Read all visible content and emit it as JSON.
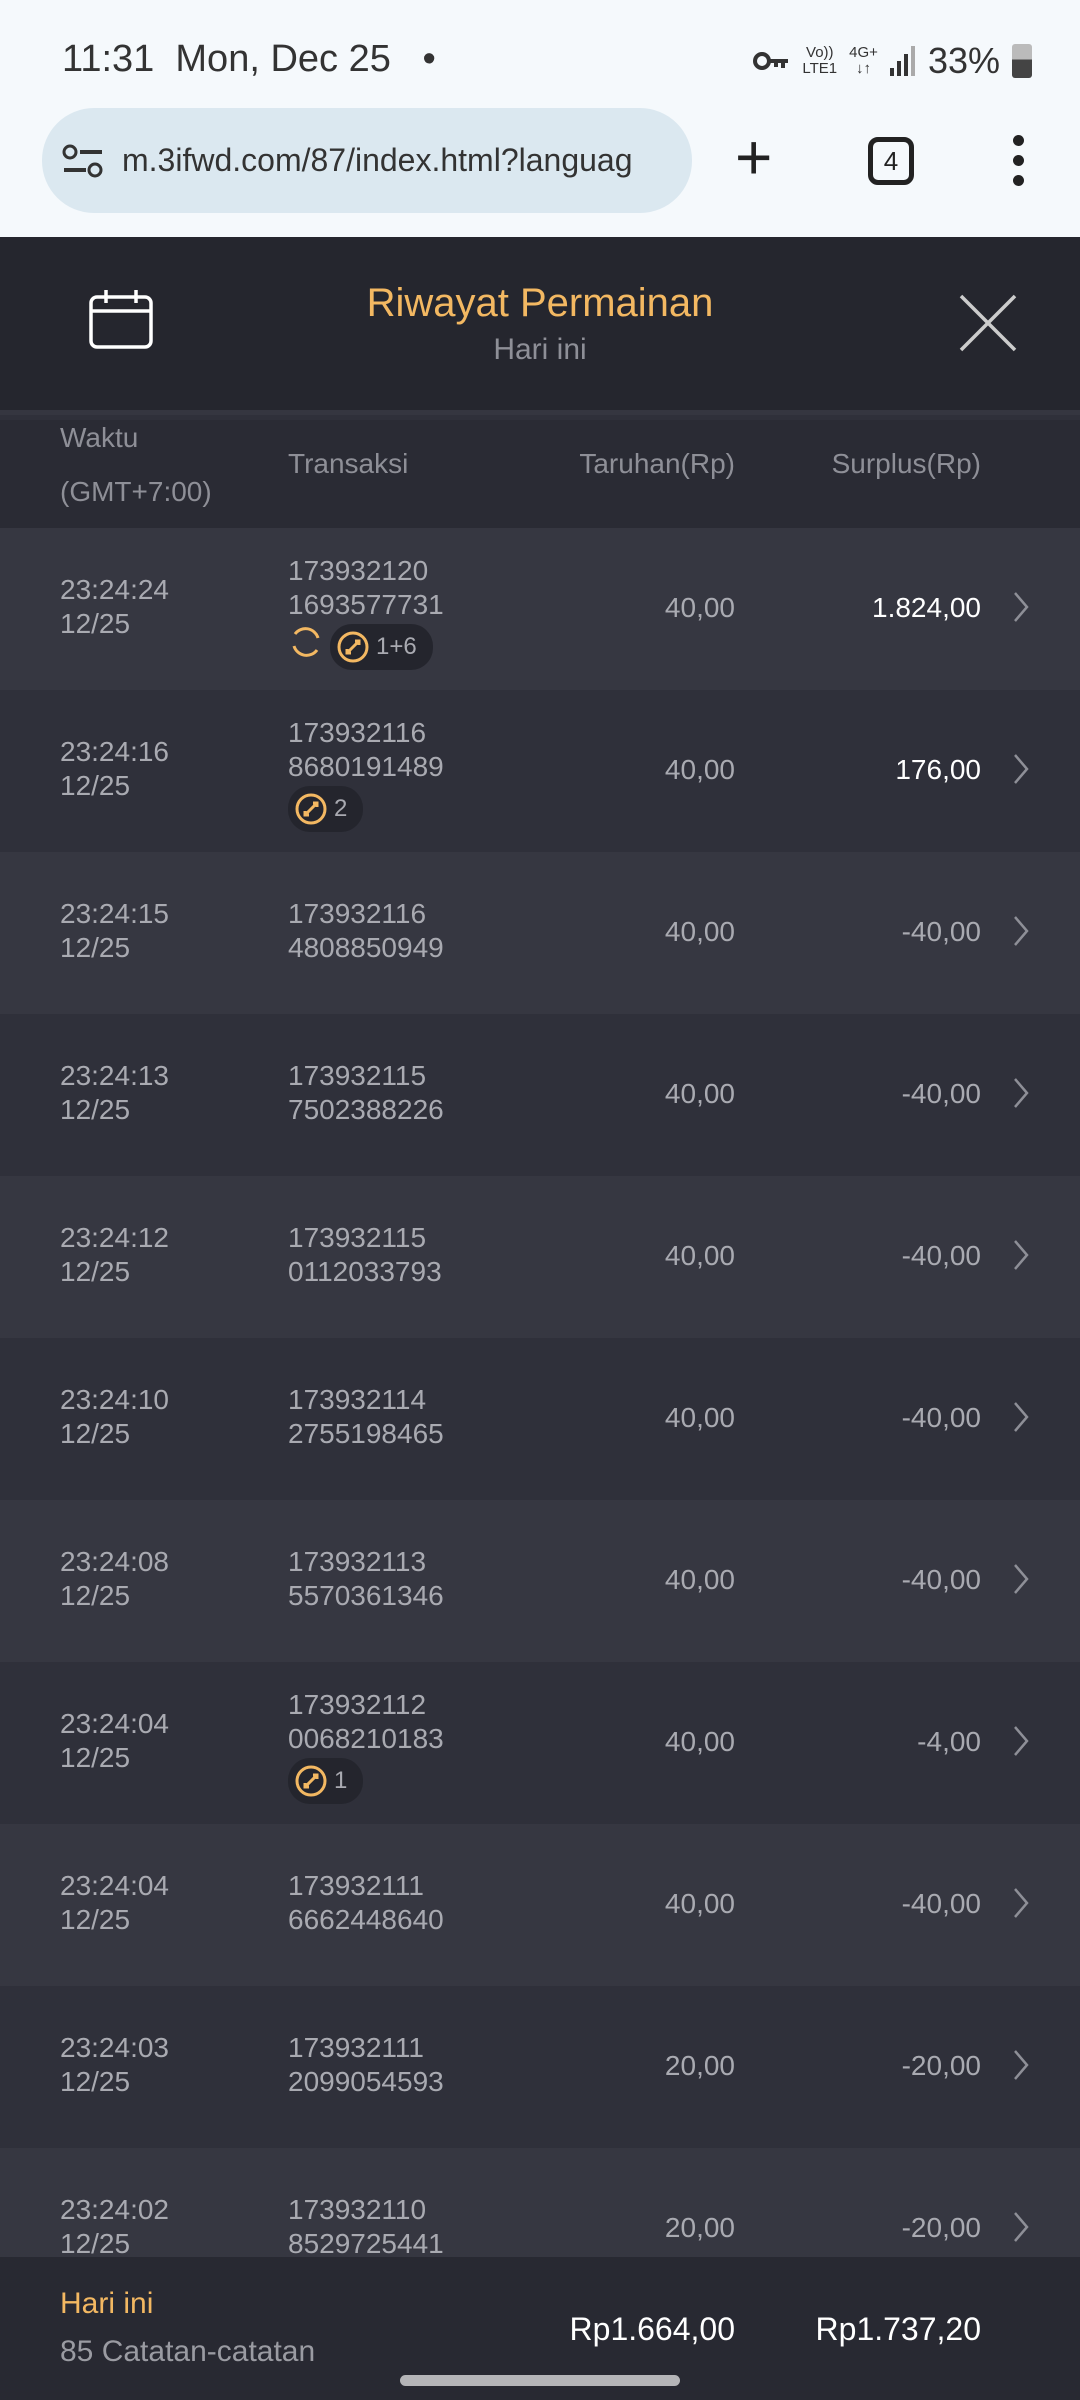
{
  "status_bar": {
    "time": "11:31",
    "date": "Mon, Dec 25",
    "dot": "•",
    "volte": "Vo))",
    "lte": "LTE1",
    "network": "4G+",
    "arrows": "↓↑",
    "battery": "33%"
  },
  "browser": {
    "url": "m.3ifwd.com/87/index.html?languag",
    "tab_count": "4",
    "plus": "+"
  },
  "header": {
    "title": "Riwayat Permainan",
    "subtitle": "Hari ini"
  },
  "columns": {
    "time": "Waktu",
    "timezone": "(GMT+7:00)",
    "transaction": "Transaksi",
    "bet": "Taruhan(Rp)",
    "surplus": "Surplus(Rp)"
  },
  "accent_color": "#f3b862",
  "rows": [
    {
      "time": "23:24:24",
      "date": "12/25",
      "tx1": "173932120",
      "tx2": "1693577731",
      "bet": "40,00",
      "surplus": "1.824,00",
      "positive": true,
      "refresh": true,
      "badge": "1+6"
    },
    {
      "time": "23:24:16",
      "date": "12/25",
      "tx1": "173932116",
      "tx2": "8680191489",
      "bet": "40,00",
      "surplus": "176,00",
      "positive": true,
      "badge": "2"
    },
    {
      "time": "23:24:15",
      "date": "12/25",
      "tx1": "173932116",
      "tx2": "4808850949",
      "bet": "40,00",
      "surplus": "-40,00"
    },
    {
      "time": "23:24:13",
      "date": "12/25",
      "tx1": "173932115",
      "tx2": "7502388226",
      "bet": "40,00",
      "surplus": "-40,00"
    },
    {
      "time": "23:24:12",
      "date": "12/25",
      "tx1": "173932115",
      "tx2": "0112033793",
      "bet": "40,00",
      "surplus": "-40,00"
    },
    {
      "time": "23:24:10",
      "date": "12/25",
      "tx1": "173932114",
      "tx2": "2755198465",
      "bet": "40,00",
      "surplus": "-40,00"
    },
    {
      "time": "23:24:08",
      "date": "12/25",
      "tx1": "173932113",
      "tx2": "5570361346",
      "bet": "40,00",
      "surplus": "-40,00"
    },
    {
      "time": "23:24:04",
      "date": "12/25",
      "tx1": "173932112",
      "tx2": "0068210183",
      "bet": "40,00",
      "surplus": "-4,00",
      "badge": "1"
    },
    {
      "time": "23:24:04",
      "date": "12/25",
      "tx1": "173932111",
      "tx2": "6662448640",
      "bet": "40,00",
      "surplus": "-40,00"
    },
    {
      "time": "23:24:03",
      "date": "12/25",
      "tx1": "173932111",
      "tx2": "2099054593",
      "bet": "20,00",
      "surplus": "-20,00"
    },
    {
      "time": "23:24:02",
      "date": "12/25",
      "tx1": "173932110",
      "tx2": "8529725441",
      "bet": "20,00",
      "surplus": "-20,00"
    }
  ],
  "footer": {
    "label": "Hari ini",
    "count": "85 Catatan-catatan",
    "total_bet": "Rp1.664,00",
    "total_surplus": "Rp1.737,20"
  }
}
